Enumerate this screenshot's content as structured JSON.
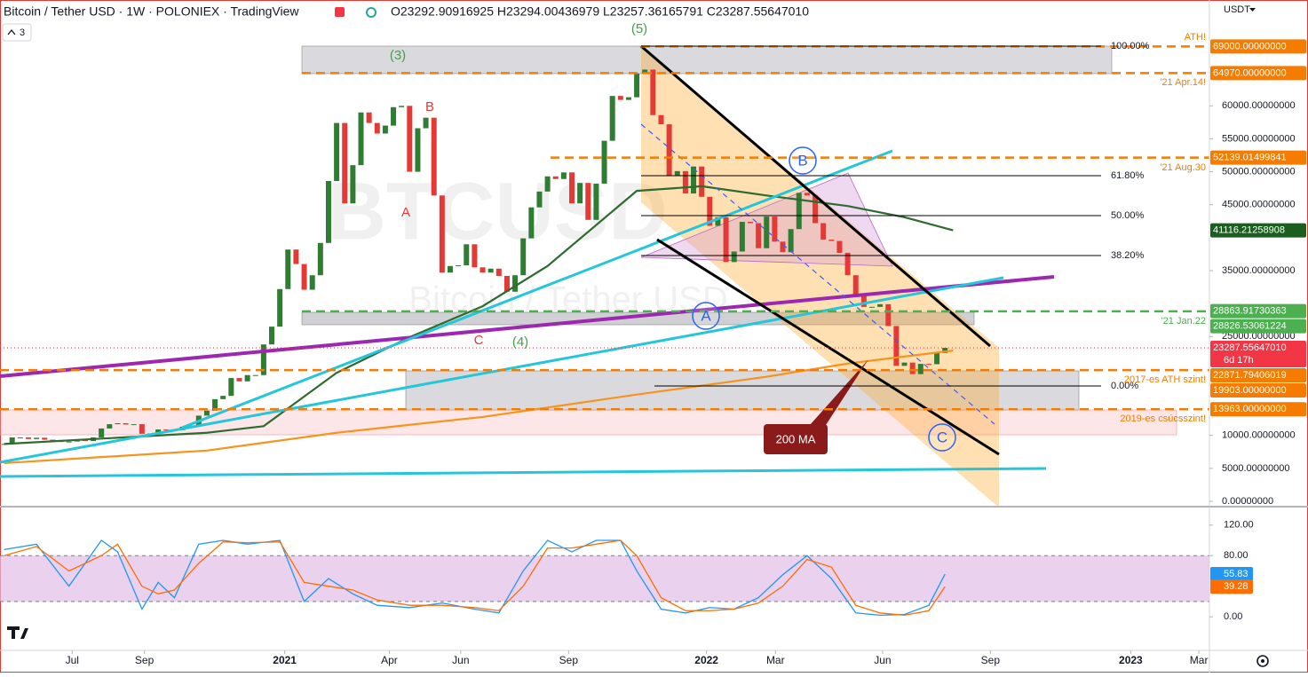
{
  "header": {
    "title": "Bitcoin / Tether USD · 1W · POLONIEX · TradingView",
    "ohlc": "O23292.90916925 H23294.00436979 L23257.36165791 C23287.55647010",
    "badge": "3",
    "currency": "USDT"
  },
  "chart_data": [
    {
      "type": "candlestick",
      "title": "BTCUSD",
      "subtitle": "Bitcoin / Tether USD",
      "up_color": "#2e7d32",
      "down_color": "#e53935",
      "xlim": [
        -0.5,
        148.6
      ],
      "xticks": [
        {
          "value": 8.4,
          "label": "Jul"
        },
        {
          "value": 17.3,
          "label": "Sep"
        },
        {
          "value": 34.6,
          "label": "2021"
        },
        {
          "value": 47.5,
          "label": "Apr"
        },
        {
          "value": 56.3,
          "label": "Jun"
        },
        {
          "value": 69.6,
          "label": "Sep"
        },
        {
          "value": 86.6,
          "label": "2022"
        },
        {
          "value": 95.1,
          "label": "Mar"
        },
        {
          "value": 108.3,
          "label": "Jun"
        },
        {
          "value": 121.6,
          "label": "Sep"
        },
        {
          "value": 138.9,
          "label": "2023"
        },
        {
          "value": 147.3,
          "label": "Mar"
        }
      ],
      "ylim": [
        -673,
        76058
      ],
      "yticks": [
        {
          "value": 0,
          "label": "0.00000000"
        },
        {
          "value": 5000,
          "label": "5000.00000000"
        },
        {
          "value": 10000,
          "label": "10000.00000000"
        },
        {
          "value": 25000,
          "label": "25000.00000000"
        },
        {
          "value": 35000,
          "label": "35000.00000000"
        },
        {
          "value": 45000,
          "label": "45000.00000000"
        },
        {
          "value": 50000,
          "label": "50000.00000000"
        },
        {
          "value": 55000,
          "label": "55000.00000000"
        },
        {
          "value": 60000,
          "label": "60000.00000000"
        }
      ],
      "close": [
        8700,
        9700,
        9700,
        9450,
        9650,
        9350,
        9300,
        9000,
        9070,
        9300,
        9150,
        9700,
        11050,
        11700,
        11850,
        11650,
        11700,
        10250,
        10300,
        10900,
        10750,
        10800,
        11300,
        11500,
        13000,
        13750,
        15500,
        16000,
        18700,
        18200,
        19150,
        19150,
        23800,
        26500,
        32200,
        38200,
        36000,
        32100,
        34300,
        39200,
        48600,
        57400,
        45200,
        51000,
        59000,
        57400,
        55800,
        57000,
        59800,
        60000,
        50000,
        56600,
        58200,
        46400,
        34700,
        35700,
        35800,
        39000,
        35500,
        34700,
        35300,
        34200,
        31800,
        34300,
        39900,
        44600,
        47000,
        49300,
        48900,
        49900,
        45200,
        48300,
        42700,
        48200,
        54700,
        61500,
        60900,
        61300,
        64900,
        65500,
        58600,
        57200,
        49400,
        50100,
        46700,
        50800,
        46200,
        41800,
        43100,
        36300,
        37900,
        42400,
        42200,
        38400,
        43200,
        39400,
        37800,
        41300,
        46800,
        46400,
        42200,
        39700,
        39500,
        37700,
        34300,
        31300,
        29500,
        29500,
        29900,
        26600,
        20550,
        21050,
        19300,
        20850,
        20800,
        22500,
        23287.5564701
      ],
      "lines": [
        {
          "color": "#2e6b2e",
          "x": [
            0,
            25,
            32,
            41,
            50,
            59,
            67,
            78,
            86,
            94,
            104,
            111,
            117
          ],
          "values": [
            8700,
            10400,
            11400,
            19500,
            24900,
            29600,
            35700,
            47100,
            47800,
            46400,
            44800,
            43100,
            41116.21258908
          ]
        },
        {
          "name": "200 MA",
          "color": "#f7941d",
          "x": [
            0,
            25,
            41,
            59,
            78,
            94,
            104,
            117
          ],
          "values": [
            5800,
            7700,
            10400,
            12800,
            16200,
            18900,
            20900,
            22871.79406019
          ]
        }
      ],
      "price_labels": [
        {
          "value": 69000,
          "label": "69000.00000000",
          "color": "#f57c00"
        },
        {
          "value": 64970,
          "label": "64970.00000000",
          "color": "#f57c00"
        },
        {
          "value": 52139.01499841,
          "label": "52139.01499841",
          "color": "#f57c00"
        },
        {
          "value": 41116.21258908,
          "label": "41116.21258908",
          "color": "#1b5e20"
        },
        {
          "value": 28863.91730363,
          "label": "28863.91730363",
          "color": "#4caf50"
        },
        {
          "value": 28826.53061224,
          "label": "28826.53061224",
          "color": "#4caf50"
        },
        {
          "value": 23287.5564701,
          "label": "23287.55647010",
          "color": "#f23645"
        },
        {
          "value": 22871.79406019,
          "label": "22871.79406019",
          "color": "#f57c00"
        },
        {
          "value": 19903,
          "label": "19903.00000000",
          "color": "#f57c00"
        },
        {
          "value": 13963,
          "label": "13963.00000000",
          "color": "#f57c00"
        }
      ],
      "countdown": "6d 17h",
      "fib_levels": [
        "100.00%",
        "61.80%",
        "50.00%",
        "38.20%",
        "0.00%"
      ],
      "annotations": [
        {
          "text": "(3)",
          "color": "#43a047"
        },
        {
          "text": "(5)",
          "color": "#43a047"
        },
        {
          "text": "(4)",
          "color": "#43a047"
        },
        {
          "text": "A",
          "color": "#e53935"
        },
        {
          "text": "B",
          "color": "#e53935"
        },
        {
          "text": "C",
          "color": "#e53935"
        },
        {
          "text": "ATH!",
          "color": "#f57c00"
        },
        {
          "text": "'21 Apr.14!",
          "color": "#f57c00"
        },
        {
          "text": "'21 Aug.30",
          "color": "#f57c00"
        },
        {
          "text": "'21 Jan.22",
          "color": "#4caf50"
        },
        {
          "text": "2017-es ATH szint!",
          "color": "#f57c00"
        },
        {
          "text": "2019-es csúcsszint!",
          "color": "#f57c00"
        }
      ],
      "wave_circles": [
        {
          "text": "A"
        },
        {
          "text": "B"
        },
        {
          "text": "C"
        }
      ],
      "circle_color": "#2962ff"
    },
    {
      "type": "line",
      "xlim": [
        -0.5,
        148.6
      ],
      "ylim": [
        -44,
        143
      ],
      "yticks": [
        {
          "value": 120,
          "label": "120.00"
        },
        {
          "value": 80,
          "label": "80.00"
        },
        {
          "value": 0,
          "label": "0.00"
        }
      ],
      "band": [
        20,
        80
      ],
      "band_color": "#e1bee7",
      "x": [
        0,
        4,
        8,
        12,
        14,
        17,
        19,
        21,
        24,
        27,
        30,
        34,
        37,
        40,
        43,
        46,
        50,
        54,
        58,
        61,
        64,
        67,
        70,
        73,
        76,
        78,
        81,
        84,
        87,
        90,
        93,
        96,
        99,
        102,
        105,
        108,
        111,
        114,
        116
      ],
      "series": [
        {
          "color": "#2196f3",
          "last_label": "55.83",
          "values": [
            88,
            95,
            40,
            100,
            85,
            10,
            45,
            25,
            95,
            100,
            95,
            100,
            20,
            50,
            30,
            15,
            12,
            18,
            10,
            5,
            60,
            100,
            85,
            100,
            100,
            60,
            10,
            5,
            12,
            10,
            25,
            55,
            80,
            50,
            5,
            2,
            3,
            15,
            55.83
          ]
        },
        {
          "color": "#ff6d00",
          "last_label": "39.28",
          "values": [
            80,
            92,
            60,
            80,
            95,
            40,
            30,
            35,
            70,
            98,
            97,
            98,
            45,
            40,
            35,
            22,
            15,
            15,
            12,
            8,
            40,
            90,
            90,
            95,
            100,
            80,
            25,
            8,
            8,
            10,
            18,
            40,
            75,
            65,
            15,
            5,
            2,
            8,
            39.28
          ]
        }
      ]
    }
  ]
}
